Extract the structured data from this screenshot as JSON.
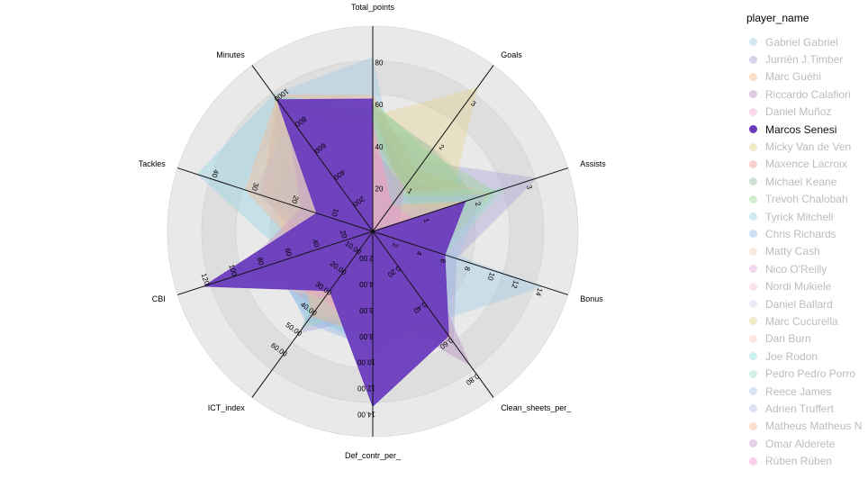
{
  "chart_data": {
    "type": "radar",
    "legend_title": "player_name",
    "axes": [
      {
        "name": "Total_points",
        "max": 90,
        "ticks": [
          20,
          40,
          60,
          80
        ]
      },
      {
        "name": "Goals",
        "max": 3.5,
        "ticks": [
          1,
          2,
          3
        ]
      },
      {
        "name": "Assists",
        "max": 3.5,
        "ticks": [
          1,
          2,
          3
        ]
      },
      {
        "name": "Bonus",
        "max": 15,
        "ticks": [
          2,
          4,
          6,
          8,
          10,
          12,
          14
        ]
      },
      {
        "name": "Clean_sheets_per_",
        "max": 0.85,
        "ticks": [
          "0.20",
          "0.40",
          "0.60",
          "0.80"
        ]
      },
      {
        "name": "Def_contr_per_",
        "max": 14.5,
        "ticks": [
          "2.00",
          "4.00",
          "6.00",
          "8.00",
          "10.00",
          "12.00",
          "14.00"
        ]
      },
      {
        "name": "ICT_index",
        "max": 75,
        "ticks": [
          "10.00",
          "20.00",
          "30.00",
          "40.00",
          "50.00",
          "60.00"
        ]
      },
      {
        "name": "CBI",
        "max": 130,
        "ticks": [
          20,
          40,
          60,
          80,
          100,
          120
        ]
      },
      {
        "name": "Tackles",
        "max": 45,
        "ticks": [
          10,
          20,
          30,
          40
        ]
      },
      {
        "name": "Minutes",
        "max": 1150,
        "ticks": [
          200,
          400,
          600,
          800,
          1000
        ]
      }
    ],
    "highlight": "Marcos Senesi",
    "series": [
      {
        "name": "Gabriel Gabriel",
        "color": "#9ecae9",
        "values": [
          83,
          0.9,
          0.2,
          14.2,
          0.5,
          7.5,
          44,
          73,
          8,
          1030
        ]
      },
      {
        "name": "Jurriën J.Timber",
        "color": "#a49fd2",
        "values": [
          58,
          1.6,
          3.2,
          7.0,
          0.62,
          6.5,
          50,
          20,
          22,
          880
        ]
      },
      {
        "name": "Marc Guéhi",
        "color": "#f7b686",
        "values": [
          65,
          1.4,
          2.3,
          5.5,
          0.55,
          8.5,
          36,
          62,
          18,
          1030
        ]
      },
      {
        "name": "Riccardo Calafiori",
        "color": "#b489bf",
        "values": [
          55,
          1.2,
          1.8,
          4.0,
          0.75,
          6.0,
          30,
          40,
          15,
          860
        ]
      },
      {
        "name": "Daniel Muñoz",
        "color": "#f4a9d0",
        "values": [
          60,
          1.0,
          1.5,
          5.0,
          0.5,
          7.0,
          40,
          30,
          25,
          980
        ]
      },
      {
        "name": "Marcos Senesi",
        "color": "#6a3cbd",
        "values": [
          63,
          0.0,
          1.8,
          6.0,
          0.58,
          13.4,
          29,
          122,
          14,
          990
        ]
      },
      {
        "name": "Micky Van de Ven",
        "color": "#e5d18d",
        "values": [
          55,
          3.3,
          1.5,
          4.0,
          0.55,
          8.0,
          40,
          60,
          10,
          900
        ]
      },
      {
        "name": "Maxence Lacroix",
        "color": "#f09a95",
        "values": [
          50,
          1.0,
          2.3,
          5.5,
          0.5,
          7.5,
          38,
          80,
          16,
          1000
        ]
      },
      {
        "name": "Michael Keane",
        "color": "#8fbf9f",
        "values": [
          60,
          1.9,
          2.0,
          5.0,
          0.45,
          8.5,
          35,
          85,
          12,
          950
        ]
      },
      {
        "name": "Trevoh Chalobah",
        "color": "#98d795",
        "values": [
          62,
          1.8,
          2.4,
          5.5,
          0.55,
          7.5,
          37,
          60,
          14,
          980
        ]
      },
      {
        "name": "Tyrick Mitchell",
        "color": "#90d3e5",
        "values": [
          58,
          0.5,
          1.2,
          4.5,
          0.45,
          9.0,
          42,
          60,
          44,
          1030
        ]
      },
      {
        "name": "Chris Richards",
        "color": "#8bb7e8",
        "values": [
          48,
          0.4,
          1.0,
          5.5,
          0.5,
          9.0,
          45,
          70,
          20,
          850
        ]
      },
      {
        "name": "Matty Cash",
        "color": "#f5cfb0",
        "values": [
          50,
          0.6,
          1.6,
          5.0,
          0.45,
          7.0,
          38,
          55,
          26,
          900
        ]
      },
      {
        "name": "Nico O'Reilly",
        "color": "#e0a5d8",
        "values": [
          40,
          0.8,
          1.0,
          3.0,
          0.4,
          6.0,
          30,
          30,
          20,
          700
        ]
      },
      {
        "name": "Nordi Mukiele",
        "color": "#f5bfd8",
        "values": [
          44,
          0.6,
          1.2,
          3.5,
          0.45,
          7.0,
          32,
          50,
          22,
          850
        ]
      },
      {
        "name": "Daniel Ballard",
        "color": "#d2d2ea",
        "values": [
          45,
          1.0,
          0.8,
          4.0,
          0.4,
          9.0,
          30,
          90,
          15,
          880
        ]
      },
      {
        "name": "Marc Cucurella",
        "color": "#dcd28a",
        "values": [
          56,
          0.7,
          1.8,
          5.0,
          0.6,
          6.5,
          42,
          40,
          28,
          990
        ]
      },
      {
        "name": "Dan Burn",
        "color": "#f6c5c5",
        "values": [
          48,
          0.8,
          1.0,
          4.5,
          0.5,
          8.5,
          34,
          95,
          18,
          1010
        ]
      },
      {
        "name": "Joe Rodon",
        "color": "#8fe0e0",
        "values": [
          45,
          0.5,
          0.5,
          3.5,
          0.45,
          9.5,
          30,
          110,
          15,
          1000
        ]
      },
      {
        "name": "Pedro Pedro Porro",
        "color": "#9fdcc2",
        "values": [
          58,
          0.9,
          2.6,
          6.0,
          0.5,
          5.5,
          48,
          35,
          25,
          990
        ]
      },
      {
        "name": "Reece James",
        "color": "#a7c6e8",
        "values": [
          52,
          0.8,
          2.2,
          7.0,
          0.55,
          7.0,
          44,
          35,
          30,
          850
        ]
      },
      {
        "name": "Adrien Truffert",
        "color": "#b7bfe5",
        "values": [
          46,
          0.5,
          1.5,
          4.0,
          0.5,
          7.5,
          40,
          45,
          28,
          980
        ]
      },
      {
        "name": "Matheus Matheus N",
        "color": "#f7b78e",
        "values": [
          50,
          0.6,
          1.8,
          5.0,
          0.55,
          8.0,
          42,
          50,
          32,
          1000
        ]
      },
      {
        "name": "Omar Alderete",
        "color": "#c59ac9",
        "values": [
          40,
          1.0,
          0.5,
          3.0,
          0.4,
          10.0,
          30,
          100,
          18,
          900
        ]
      },
      {
        "name": "Rúben Rúben",
        "color": "#f29cc9",
        "values": [
          54,
          0.6,
          0.8,
          5.0,
          0.6,
          9.0,
          33,
          90,
          14,
          990
        ]
      }
    ]
  }
}
